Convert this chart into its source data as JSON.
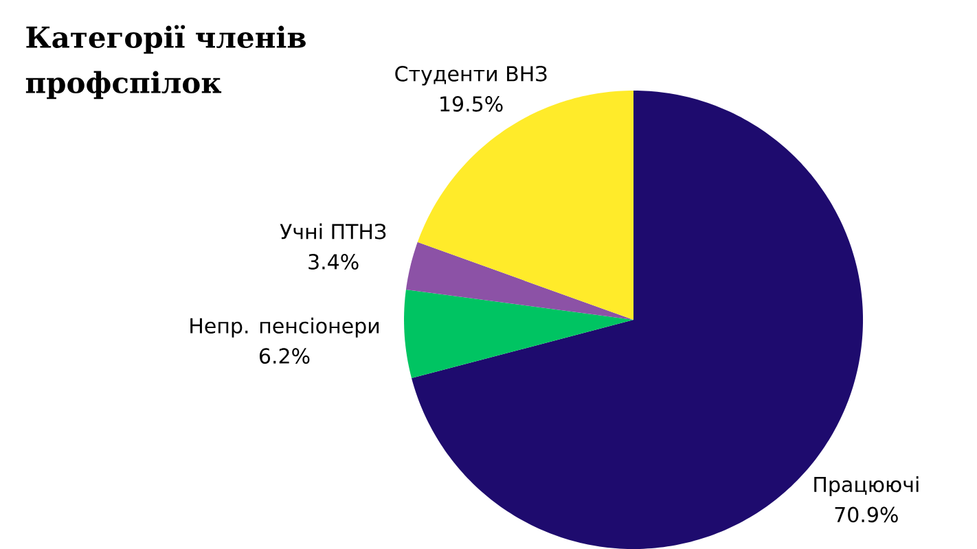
{
  "chart_data": {
    "type": "pie",
    "title": "Категорії членів профспілок",
    "categories": [
      "Працюючі",
      "Непр. пенсіонери",
      "Учні ПТНЗ",
      "Студенти ВНЗ"
    ],
    "values": [
      70.9,
      6.2,
      3.4,
      19.5
    ],
    "value_labels": [
      "70.9%",
      "6.2%",
      "3.4%",
      "19.5%"
    ],
    "colors": [
      "#1e0b6e",
      "#00c462",
      "#8c52a6",
      "#ffeb2a"
    ]
  }
}
